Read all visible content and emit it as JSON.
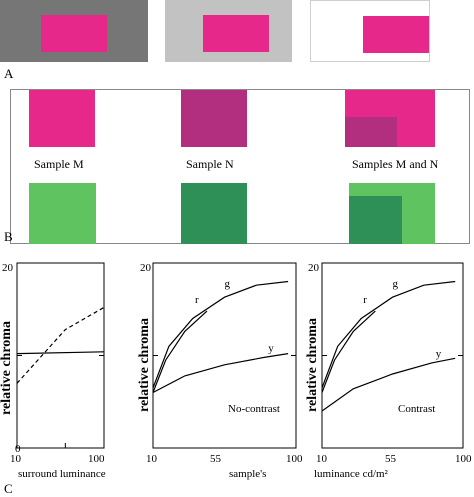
{
  "panel_a": {
    "label": "A"
  },
  "panel_b": {
    "label": "B",
    "samples": [
      {
        "label": "Sample M"
      },
      {
        "label": "Sample N"
      },
      {
        "label": "Samples M and N"
      }
    ]
  },
  "panel_c": {
    "label": "C"
  },
  "colors": {
    "magenta": "#e6288a",
    "magenta_dark": "#b22e7f",
    "green": "#5fc45f",
    "green_dark": "#2e8f57",
    "gray_dark": "#767676",
    "gray_light": "#c2c2c2"
  },
  "chart_data": [
    {
      "type": "line",
      "xlabel": "surround luminance",
      "ylabel": "relative chroma",
      "x_ticks": [
        "10",
        "100"
      ],
      "y_ticks": [
        "0",
        "20"
      ],
      "xlim": [
        10,
        100
      ],
      "ylim": [
        0,
        20
      ],
      "series": [
        {
          "style": "dashed",
          "x": [
            10,
            60,
            100
          ],
          "y": [
            7,
            12.8,
            15.2
          ]
        },
        {
          "style": "solid",
          "x": [
            10,
            100
          ],
          "y": [
            10.2,
            10.4
          ]
        }
      ]
    },
    {
      "type": "line",
      "annotation": "No-contrast",
      "xlabel": "sample's",
      "ylabel": "relative chroma",
      "x_ticks": [
        "10",
        "55",
        "100"
      ],
      "y_ticks": [
        "20"
      ],
      "xlim": [
        10,
        100
      ],
      "ylim": [
        0,
        20
      ],
      "series": [
        {
          "name": "g",
          "x": [
            10,
            20,
            35,
            55,
            75,
            95
          ],
          "y": [
            6.5,
            11,
            14,
            16.3,
            17.6,
            18
          ]
        },
        {
          "name": "r",
          "x": [
            10,
            18,
            30,
            44
          ],
          "y": [
            6,
            9.5,
            12.6,
            14.8
          ]
        },
        {
          "name": "y",
          "x": [
            10,
            30,
            55,
            80,
            95
          ],
          "y": [
            6,
            7.8,
            9,
            9.8,
            10.2
          ]
        }
      ]
    },
    {
      "type": "line",
      "annotation": "Contrast",
      "xlabel": "luminance  cd/m²",
      "ylabel": "relative chroma",
      "x_ticks": [
        "10",
        "55",
        "100"
      ],
      "y_ticks": [
        "20"
      ],
      "xlim": [
        10,
        100
      ],
      "ylim": [
        0,
        20
      ],
      "series": [
        {
          "name": "g",
          "x": [
            10,
            20,
            35,
            55,
            75,
            95
          ],
          "y": [
            6.5,
            11,
            14,
            16.3,
            17.6,
            18
          ]
        },
        {
          "name": "r",
          "x": [
            10,
            18,
            30,
            44
          ],
          "y": [
            6,
            9.5,
            12.6,
            14.8
          ]
        },
        {
          "name": "y",
          "x": [
            10,
            30,
            55,
            80,
            95
          ],
          "y": [
            4,
            6.4,
            8,
            9.2,
            9.7
          ]
        }
      ]
    }
  ]
}
